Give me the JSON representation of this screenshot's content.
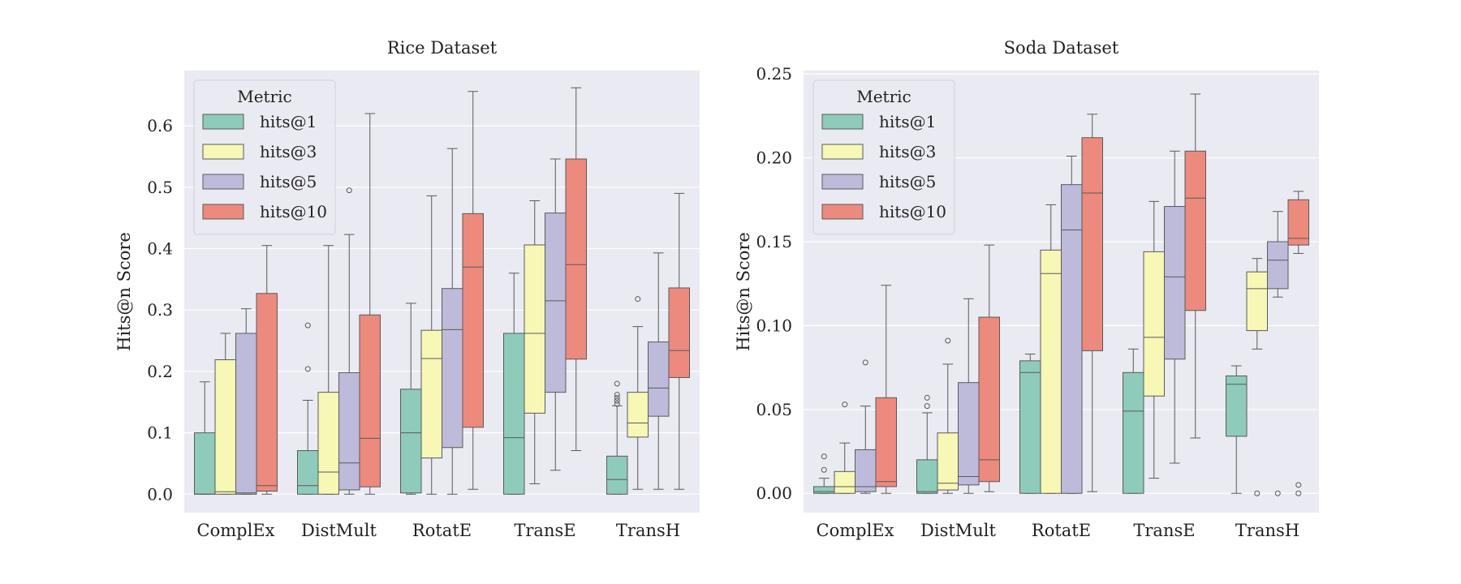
{
  "chart_data": [
    {
      "type": "box",
      "title": "Rice Dataset",
      "xlabel": "",
      "ylabel": "Hits@n Score",
      "ylim": [
        -0.03,
        0.69
      ],
      "yticks": [
        0.0,
        0.1,
        0.2,
        0.3,
        0.4,
        0.5,
        0.6
      ],
      "ytick_labels": [
        "0.0",
        "0.1",
        "0.2",
        "0.3",
        "0.4",
        "0.5",
        "0.6"
      ],
      "categories": [
        "ComplEx",
        "DistMult",
        "RotatE",
        "TransE",
        "TransH"
      ],
      "legend": {
        "title": "Metric",
        "placement": "top-left"
      },
      "grid": true,
      "series": [
        {
          "name": "hits@1",
          "color": "#8ecbbb",
          "boxes": [
            {
              "whislo": 0.0,
              "q1": 0.0,
              "med": 0.0,
              "q3": 0.1,
              "whishi": 0.183,
              "fliers": []
            },
            {
              "whislo": 0.0,
              "q1": 0.0,
              "med": 0.014,
              "q3": 0.071,
              "whishi": 0.153,
              "fliers": [
                0.204,
                0.275
              ]
            },
            {
              "whislo": 0.0,
              "q1": 0.002,
              "med": 0.1,
              "q3": 0.171,
              "whishi": 0.311,
              "fliers": []
            },
            {
              "whislo": 0.0,
              "q1": 0.0,
              "med": 0.092,
              "q3": 0.262,
              "whishi": 0.36,
              "fliers": []
            },
            {
              "whislo": 0.0,
              "q1": 0.0,
              "med": 0.024,
              "q3": 0.062,
              "whishi": 0.144,
              "fliers": [
                0.147,
                0.152,
                0.157,
                0.162,
                0.18
              ]
            }
          ]
        },
        {
          "name": "hits@3",
          "color": "#f7f7b6",
          "boxes": [
            {
              "whislo": 0.0,
              "q1": 0.0,
              "med": 0.004,
              "q3": 0.219,
              "whishi": 0.262,
              "fliers": []
            },
            {
              "whislo": 0.0,
              "q1": 0.0,
              "med": 0.036,
              "q3": 0.166,
              "whishi": 0.405,
              "fliers": []
            },
            {
              "whislo": 0.0,
              "q1": 0.059,
              "med": 0.221,
              "q3": 0.267,
              "whishi": 0.486,
              "fliers": []
            },
            {
              "whislo": 0.017,
              "q1": 0.132,
              "med": 0.262,
              "q3": 0.406,
              "whishi": 0.478,
              "fliers": []
            },
            {
              "whislo": 0.008,
              "q1": 0.093,
              "med": 0.116,
              "q3": 0.166,
              "whishi": 0.273,
              "fliers": [
                0.318
              ]
            }
          ]
        },
        {
          "name": "hits@5",
          "color": "#bebad9",
          "boxes": [
            {
              "whislo": 0.0,
              "q1": 0.0,
              "med": 0.002,
              "q3": 0.262,
              "whishi": 0.302,
              "fliers": []
            },
            {
              "whislo": 0.0,
              "q1": 0.007,
              "med": 0.051,
              "q3": 0.198,
              "whishi": 0.423,
              "fliers": [
                0.495
              ]
            },
            {
              "whislo": 0.0,
              "q1": 0.076,
              "med": 0.268,
              "q3": 0.335,
              "whishi": 0.563,
              "fliers": []
            },
            {
              "whislo": 0.039,
              "q1": 0.166,
              "med": 0.315,
              "q3": 0.458,
              "whishi": 0.546,
              "fliers": []
            },
            {
              "whislo": 0.008,
              "q1": 0.127,
              "med": 0.173,
              "q3": 0.248,
              "whishi": 0.393,
              "fliers": []
            }
          ]
        },
        {
          "name": "hits@10",
          "color": "#ec8a7d",
          "boxes": [
            {
              "whislo": 0.0,
              "q1": 0.005,
              "med": 0.014,
              "q3": 0.327,
              "whishi": 0.405,
              "fliers": []
            },
            {
              "whislo": 0.0,
              "q1": 0.012,
              "med": 0.091,
              "q3": 0.292,
              "whishi": 0.62,
              "fliers": []
            },
            {
              "whislo": 0.008,
              "q1": 0.109,
              "med": 0.37,
              "q3": 0.457,
              "whishi": 0.656,
              "fliers": []
            },
            {
              "whislo": 0.071,
              "q1": 0.22,
              "med": 0.374,
              "q3": 0.546,
              "whishi": 0.662,
              "fliers": []
            },
            {
              "whislo": 0.008,
              "q1": 0.19,
              "med": 0.234,
              "q3": 0.336,
              "whishi": 0.49,
              "fliers": []
            }
          ]
        }
      ]
    },
    {
      "type": "box",
      "title": "Soda Dataset",
      "xlabel": "",
      "ylabel": "Hits@n Score",
      "ylim": [
        -0.0115,
        0.252
      ],
      "yticks": [
        0.0,
        0.05,
        0.1,
        0.15,
        0.2,
        0.25
      ],
      "ytick_labels": [
        "0.00",
        "0.05",
        "0.10",
        "0.15",
        "0.20",
        "0.25"
      ],
      "categories": [
        "ComplEx",
        "DistMult",
        "RotatE",
        "TransE",
        "TransH"
      ],
      "legend": {
        "title": "Metric",
        "placement": "top-left"
      },
      "grid": true,
      "series": [
        {
          "name": "hits@1",
          "color": "#8ecbbb",
          "boxes": [
            {
              "whislo": 0.0,
              "q1": 0.0,
              "med": 0.001,
              "q3": 0.004,
              "whishi": 0.009,
              "fliers": [
                0.014,
                0.022
              ]
            },
            {
              "whislo": 0.0,
              "q1": 0.0,
              "med": 0.001,
              "q3": 0.02,
              "whishi": 0.048,
              "fliers": [
                0.052,
                0.057
              ]
            },
            {
              "whislo": 0.0,
              "q1": 0.0,
              "med": 0.072,
              "q3": 0.079,
              "whishi": 0.083,
              "fliers": []
            },
            {
              "whislo": 0.0,
              "q1": 0.0,
              "med": 0.049,
              "q3": 0.072,
              "whishi": 0.086,
              "fliers": []
            },
            {
              "whislo": 0.0,
              "q1": 0.034,
              "med": 0.065,
              "q3": 0.07,
              "whishi": 0.076,
              "fliers": []
            }
          ]
        },
        {
          "name": "hits@3",
          "color": "#f7f7b6",
          "boxes": [
            {
              "whislo": 0.0,
              "q1": 0.0,
              "med": 0.004,
              "q3": 0.013,
              "whishi": 0.03,
              "fliers": [
                0.053
              ]
            },
            {
              "whislo": 0.0,
              "q1": 0.002,
              "med": 0.006,
              "q3": 0.036,
              "whishi": 0.077,
              "fliers": [
                0.091
              ]
            },
            {
              "whislo": 0.0,
              "q1": 0.0,
              "med": 0.131,
              "q3": 0.145,
              "whishi": 0.172,
              "fliers": []
            },
            {
              "whislo": 0.009,
              "q1": 0.058,
              "med": 0.093,
              "q3": 0.144,
              "whishi": 0.174,
              "fliers": []
            },
            {
              "whislo": 0.086,
              "q1": 0.097,
              "med": 0.122,
              "q3": 0.132,
              "whishi": 0.14,
              "fliers": [
                0.0
              ]
            }
          ]
        },
        {
          "name": "hits@5",
          "color": "#bebad9",
          "boxes": [
            {
              "whislo": 0.0,
              "q1": 0.001,
              "med": 0.004,
              "q3": 0.026,
              "whishi": 0.052,
              "fliers": [
                0.078
              ]
            },
            {
              "whislo": 0.0,
              "q1": 0.005,
              "med": 0.01,
              "q3": 0.066,
              "whishi": 0.116,
              "fliers": []
            },
            {
              "whislo": 0.0,
              "q1": 0.0,
              "med": 0.157,
              "q3": 0.184,
              "whishi": 0.201,
              "fliers": []
            },
            {
              "whislo": 0.018,
              "q1": 0.08,
              "med": 0.129,
              "q3": 0.171,
              "whishi": 0.204,
              "fliers": []
            },
            {
              "whislo": 0.117,
              "q1": 0.122,
              "med": 0.139,
              "q3": 0.15,
              "whishi": 0.168,
              "fliers": [
                0.0
              ]
            }
          ]
        },
        {
          "name": "hits@10",
          "color": "#ec8a7d",
          "boxes": [
            {
              "whislo": 0.0,
              "q1": 0.004,
              "med": 0.007,
              "q3": 0.057,
              "whishi": 0.124,
              "fliers": []
            },
            {
              "whislo": 0.001,
              "q1": 0.007,
              "med": 0.02,
              "q3": 0.105,
              "whishi": 0.148,
              "fliers": []
            },
            {
              "whislo": 0.001,
              "q1": 0.085,
              "med": 0.179,
              "q3": 0.212,
              "whishi": 0.226,
              "fliers": []
            },
            {
              "whislo": 0.033,
              "q1": 0.109,
              "med": 0.176,
              "q3": 0.204,
              "whishi": 0.238,
              "fliers": []
            },
            {
              "whislo": 0.143,
              "q1": 0.148,
              "med": 0.152,
              "q3": 0.175,
              "whishi": 0.18,
              "fliers": [
                0.0,
                0.005
              ]
            }
          ]
        }
      ]
    }
  ]
}
